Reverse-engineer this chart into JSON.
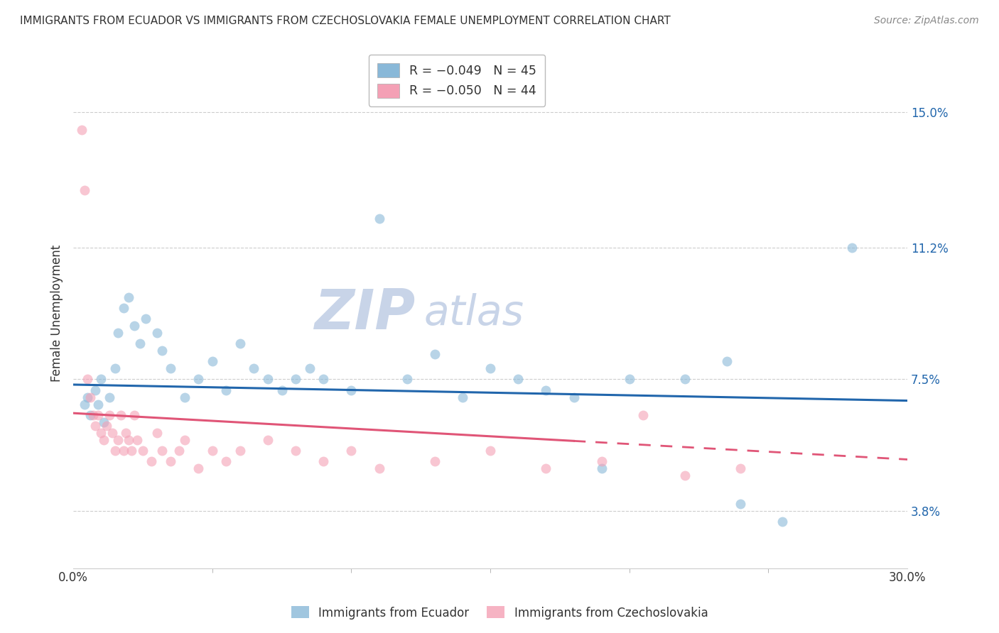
{
  "title": "IMMIGRANTS FROM ECUADOR VS IMMIGRANTS FROM CZECHOSLOVAKIA FEMALE UNEMPLOYMENT CORRELATION CHART",
  "source": "Source: ZipAtlas.com",
  "ylabel_ticks": [
    3.8,
    7.5,
    11.2,
    15.0
  ],
  "ylabel_labels": [
    "3.8%",
    "7.5%",
    "11.2%",
    "15.0%"
  ],
  "xlim": [
    0.0,
    30.0
  ],
  "ylim": [
    2.2,
    16.5
  ],
  "ecuador_color": "#89b8d8",
  "czechoslovakia_color": "#f4a0b5",
  "ecuador_line_color": "#2166ac",
  "czechoslovakia_line_color": "#e05577",
  "watermark_zip": "ZIP",
  "watermark_atlas": "atlas",
  "watermark_color": "#c8d4e8",
  "ecuador_R": -0.049,
  "czechoslovakia_R": -0.05,
  "ecuador_N": 45,
  "czechoslovakia_N": 44,
  "ecuador_line_start_y": 7.35,
  "ecuador_line_end_y": 6.9,
  "czech_line_start_y": 6.55,
  "czech_line_end_y": 5.25,
  "czech_dash_x": 18.0,
  "ecuador_points": [
    [
      0.4,
      6.8
    ],
    [
      0.5,
      7.0
    ],
    [
      0.6,
      6.5
    ],
    [
      0.8,
      7.2
    ],
    [
      0.9,
      6.8
    ],
    [
      1.0,
      7.5
    ],
    [
      1.1,
      6.3
    ],
    [
      1.3,
      7.0
    ],
    [
      1.5,
      7.8
    ],
    [
      1.6,
      8.8
    ],
    [
      1.8,
      9.5
    ],
    [
      2.0,
      9.8
    ],
    [
      2.2,
      9.0
    ],
    [
      2.4,
      8.5
    ],
    [
      2.6,
      9.2
    ],
    [
      3.0,
      8.8
    ],
    [
      3.2,
      8.3
    ],
    [
      3.5,
      7.8
    ],
    [
      4.0,
      7.0
    ],
    [
      4.5,
      7.5
    ],
    [
      5.0,
      8.0
    ],
    [
      5.5,
      7.2
    ],
    [
      6.0,
      8.5
    ],
    [
      6.5,
      7.8
    ],
    [
      7.0,
      7.5
    ],
    [
      7.5,
      7.2
    ],
    [
      8.0,
      7.5
    ],
    [
      8.5,
      7.8
    ],
    [
      9.0,
      7.5
    ],
    [
      10.0,
      7.2
    ],
    [
      11.0,
      12.0
    ],
    [
      12.0,
      7.5
    ],
    [
      13.0,
      8.2
    ],
    [
      14.0,
      7.0
    ],
    [
      15.0,
      7.8
    ],
    [
      16.0,
      7.5
    ],
    [
      17.0,
      7.2
    ],
    [
      18.0,
      7.0
    ],
    [
      19.0,
      5.0
    ],
    [
      20.0,
      7.5
    ],
    [
      22.0,
      7.5
    ],
    [
      23.5,
      8.0
    ],
    [
      24.0,
      4.0
    ],
    [
      25.5,
      3.5
    ],
    [
      28.0,
      11.2
    ]
  ],
  "czechoslovakia_points": [
    [
      0.3,
      14.5
    ],
    [
      0.4,
      12.8
    ],
    [
      0.5,
      7.5
    ],
    [
      0.6,
      7.0
    ],
    [
      0.7,
      6.5
    ],
    [
      0.8,
      6.2
    ],
    [
      0.9,
      6.5
    ],
    [
      1.0,
      6.0
    ],
    [
      1.1,
      5.8
    ],
    [
      1.2,
      6.2
    ],
    [
      1.3,
      6.5
    ],
    [
      1.4,
      6.0
    ],
    [
      1.5,
      5.5
    ],
    [
      1.6,
      5.8
    ],
    [
      1.7,
      6.5
    ],
    [
      1.8,
      5.5
    ],
    [
      1.9,
      6.0
    ],
    [
      2.0,
      5.8
    ],
    [
      2.1,
      5.5
    ],
    [
      2.2,
      6.5
    ],
    [
      2.3,
      5.8
    ],
    [
      2.5,
      5.5
    ],
    [
      2.8,
      5.2
    ],
    [
      3.0,
      6.0
    ],
    [
      3.2,
      5.5
    ],
    [
      3.5,
      5.2
    ],
    [
      3.8,
      5.5
    ],
    [
      4.0,
      5.8
    ],
    [
      4.5,
      5.0
    ],
    [
      5.0,
      5.5
    ],
    [
      5.5,
      5.2
    ],
    [
      6.0,
      5.5
    ],
    [
      7.0,
      5.8
    ],
    [
      8.0,
      5.5
    ],
    [
      9.0,
      5.2
    ],
    [
      10.0,
      5.5
    ],
    [
      11.0,
      5.0
    ],
    [
      13.0,
      5.2
    ],
    [
      15.0,
      5.5
    ],
    [
      17.0,
      5.0
    ],
    [
      19.0,
      5.2
    ],
    [
      20.5,
      6.5
    ],
    [
      22.0,
      4.8
    ],
    [
      24.0,
      5.0
    ]
  ]
}
